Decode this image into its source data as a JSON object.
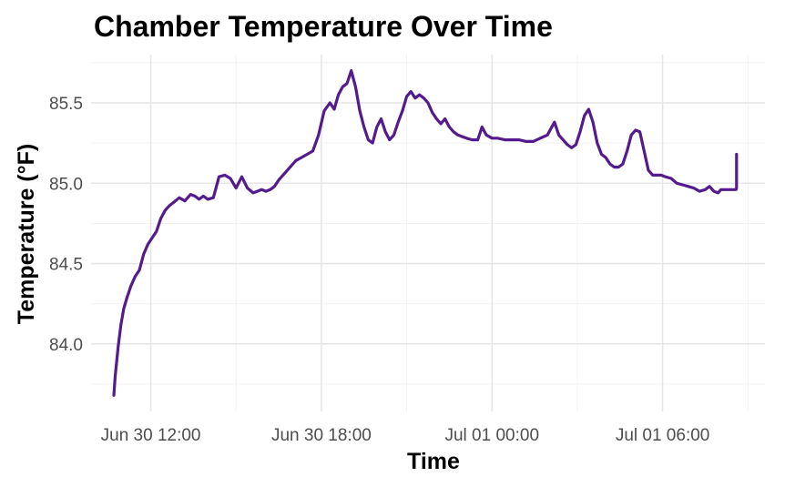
{
  "chart_data": {
    "type": "line",
    "title": "Chamber Temperature Over Time",
    "xlabel": "Time",
    "ylabel": "Temperature (°F)",
    "x_ticks": [
      {
        "value": 12,
        "label": "Jun 30 12:00"
      },
      {
        "value": 18,
        "label": "Jun 30 18:00"
      },
      {
        "value": 24,
        "label": "Jul 01 00:00"
      },
      {
        "value": 30,
        "label": "Jul 01 06:00"
      }
    ],
    "y_ticks": [
      84.0,
      84.5,
      85.0,
      85.5
    ],
    "xlim": [
      9.9,
      33.6
    ],
    "ylim": [
      83.58,
      85.8
    ],
    "grid": true,
    "legend": "none",
    "series": [
      {
        "color": "#541b8c",
        "x": [
          10.7,
          10.75,
          10.85,
          10.95,
          11.05,
          11.15,
          11.3,
          11.45,
          11.6,
          11.75,
          11.9,
          12.05,
          12.2,
          12.35,
          12.5,
          12.65,
          12.8,
          13.0,
          13.2,
          13.4,
          13.55,
          13.7,
          13.85,
          14.0,
          14.2,
          14.4,
          14.6,
          14.8,
          15.0,
          15.2,
          15.4,
          15.6,
          15.75,
          15.9,
          16.05,
          16.2,
          16.35,
          16.5,
          16.7,
          16.9,
          17.1,
          17.3,
          17.5,
          17.7,
          17.9,
          18.1,
          18.3,
          18.45,
          18.6,
          18.75,
          18.9,
          19.05,
          19.2,
          19.35,
          19.5,
          19.65,
          19.8,
          19.95,
          20.1,
          20.25,
          20.4,
          20.55,
          20.7,
          20.85,
          21.0,
          21.15,
          21.3,
          21.45,
          21.6,
          21.75,
          21.9,
          22.05,
          22.2,
          22.35,
          22.5,
          22.65,
          22.8,
          22.95,
          23.1,
          23.3,
          23.5,
          23.65,
          23.8,
          24.0,
          24.2,
          24.45,
          24.7,
          24.95,
          25.2,
          25.45,
          25.7,
          25.95,
          26.2,
          26.35,
          26.5,
          26.65,
          26.8,
          26.95,
          27.1,
          27.25,
          27.4,
          27.55,
          27.7,
          27.85,
          28.0,
          28.15,
          28.3,
          28.45,
          28.6,
          28.75,
          28.9,
          29.05,
          29.2,
          29.35,
          29.5,
          29.65,
          29.8,
          29.95,
          30.1,
          30.3,
          30.5,
          30.7,
          30.9,
          31.1,
          31.3,
          31.5,
          31.65,
          31.8,
          31.95,
          32.05,
          32.2,
          32.4,
          32.58,
          32.6,
          32.6
        ],
        "values": [
          83.68,
          83.8,
          83.98,
          84.12,
          84.22,
          84.28,
          84.36,
          84.42,
          84.46,
          84.56,
          84.62,
          84.66,
          84.7,
          84.78,
          84.83,
          84.86,
          84.88,
          84.91,
          84.89,
          84.93,
          84.92,
          84.9,
          84.92,
          84.9,
          84.91,
          85.04,
          85.05,
          85.03,
          84.97,
          85.04,
          84.97,
          84.94,
          84.95,
          84.96,
          84.95,
          84.96,
          84.98,
          85.02,
          85.06,
          85.1,
          85.14,
          85.16,
          85.18,
          85.2,
          85.3,
          85.45,
          85.5,
          85.46,
          85.55,
          85.6,
          85.62,
          85.7,
          85.6,
          85.45,
          85.35,
          85.27,
          85.25,
          85.35,
          85.4,
          85.32,
          85.27,
          85.3,
          85.38,
          85.45,
          85.54,
          85.57,
          85.53,
          85.55,
          85.53,
          85.5,
          85.44,
          85.4,
          85.37,
          85.4,
          85.35,
          85.32,
          85.3,
          85.29,
          85.28,
          85.27,
          85.27,
          85.35,
          85.3,
          85.28,
          85.28,
          85.27,
          85.27,
          85.27,
          85.26,
          85.26,
          85.28,
          85.3,
          85.38,
          85.3,
          85.27,
          85.24,
          85.22,
          85.24,
          85.32,
          85.42,
          85.46,
          85.38,
          85.25,
          85.18,
          85.16,
          85.12,
          85.1,
          85.1,
          85.12,
          85.2,
          85.3,
          85.33,
          85.32,
          85.2,
          85.08,
          85.05,
          85.05,
          85.05,
          85.04,
          85.03,
          85.0,
          84.99,
          84.98,
          84.97,
          84.95,
          84.96,
          84.98,
          84.95,
          84.94,
          84.96,
          84.96,
          84.96,
          84.96,
          84.97,
          85.18
        ]
      }
    ]
  }
}
